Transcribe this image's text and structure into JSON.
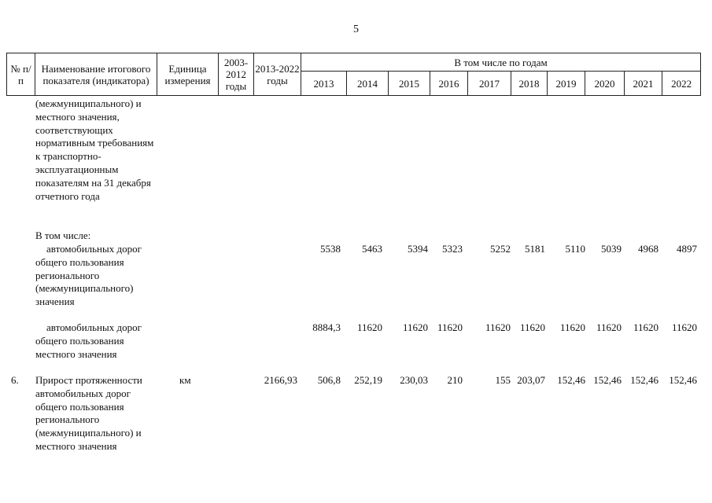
{
  "page_number": "5",
  "header": {
    "col_num": "№ п/п",
    "col_name": "Наименование итогового показателя (индикатора)",
    "col_unit": "Единица измерения",
    "col_period1": "2003-2012 годы",
    "col_period2": "2013-2022 годы",
    "col_years_group": "В том числе по годам",
    "years": [
      "2013",
      "2014",
      "2015",
      "2016",
      "2017",
      "2018",
      "2019",
      "2020",
      "2021",
      "2022"
    ]
  },
  "rows": [
    {
      "num": "",
      "name": "(межмуниципального) и местного значения, соответствующих нормативным требованиям к транспортно-эксплуатационным показателям на 31 декабря отчетного года",
      "unit": "",
      "total": "",
      "values": []
    },
    {
      "num": "",
      "name": "В том числе:",
      "unit": "",
      "total": "",
      "values": []
    },
    {
      "num": "",
      "name": "автомобильных дорог общего пользования регионального (межмуниципального) значения",
      "unit": "",
      "total": "",
      "values": [
        "5538",
        "5463",
        "5394",
        "5323",
        "5252",
        "5181",
        "5110",
        "5039",
        "4968",
        "4897"
      ]
    },
    {
      "num": "",
      "name": "автомобильных дорог общего пользования местного значения",
      "unit": "",
      "total": "",
      "values": [
        "8884,3",
        "11620",
        "11620",
        "11620",
        "11620",
        "11620",
        "11620",
        "11620",
        "11620",
        "11620"
      ]
    },
    {
      "num": "6.",
      "name": "Прирост протяженности автомобильных дорог общего пользования регионального (межмуниципального) и местного значения",
      "unit": "км",
      "total": "2166,93",
      "values": [
        "506,8",
        "252,19",
        "230,03",
        "210",
        "155",
        "203,07",
        "152,46",
        "152,46",
        "152,46",
        "152,46"
      ]
    }
  ]
}
